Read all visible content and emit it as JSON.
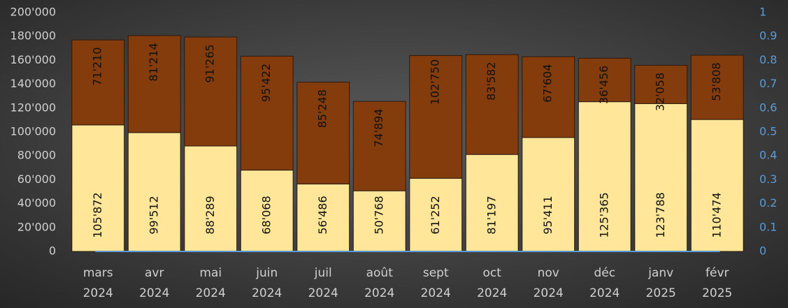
{
  "chart_data": {
    "type": "stacked_bar",
    "categories": [
      [
        "mars",
        "2024"
      ],
      [
        "avr",
        "2024"
      ],
      [
        "mai",
        "2024"
      ],
      [
        "juin",
        "2024"
      ],
      [
        "juil",
        "2024"
      ],
      [
        "août",
        "2024"
      ],
      [
        "sept",
        "2024"
      ],
      [
        "oct",
        "2024"
      ],
      [
        "nov",
        "2024"
      ],
      [
        "déc",
        "2024"
      ],
      [
        "janv",
        "2025"
      ],
      [
        "févr",
        "2025"
      ]
    ],
    "series": [
      {
        "color": "#ffe699",
        "values": [
          105872,
          99512,
          88289,
          68068,
          56486,
          50768,
          61252,
          81197,
          95411,
          125365,
          123788,
          110474
        ],
        "value_labels": [
          "105'872",
          "99'512",
          "88'289",
          "68'068",
          "56'486",
          "50'768",
          "61'252",
          "81'197",
          "95'411",
          "125'365",
          "123'788",
          "110'474"
        ]
      },
      {
        "color": "#843c0c",
        "values": [
          71210,
          81214,
          91265,
          95422,
          85248,
          74894,
          102750,
          83582,
          67604,
          36456,
          32058,
          53808
        ],
        "value_labels": [
          "71'210",
          "81'214",
          "91'265",
          "95'422",
          "85'248",
          "74'894",
          "102'750",
          "83'582",
          "67'604",
          "36'456",
          "32'058",
          "53'808"
        ]
      }
    ],
    "ylim": [
      0,
      200000
    ],
    "yticks": [
      {
        "value": 0,
        "label": "0"
      },
      {
        "value": 20000,
        "label": "20'000"
      },
      {
        "value": 40000,
        "label": "40'000"
      },
      {
        "value": 60000,
        "label": "60'000"
      },
      {
        "value": 80000,
        "label": "80'000"
      },
      {
        "value": 100000,
        "label": "100'000"
      },
      {
        "value": 120000,
        "label": "120'000"
      },
      {
        "value": 140000,
        "label": "140'000"
      },
      {
        "value": 160000,
        "label": "160'000"
      },
      {
        "value": 180000,
        "label": "180'000"
      },
      {
        "value": 200000,
        "label": "200'000"
      }
    ],
    "y2lim": [
      0,
      1
    ],
    "y2ticks": [
      0,
      0.1,
      0.2,
      0.3,
      0.4,
      0.5,
      0.6,
      0.7,
      0.8,
      0.9,
      1
    ],
    "grid": false
  }
}
